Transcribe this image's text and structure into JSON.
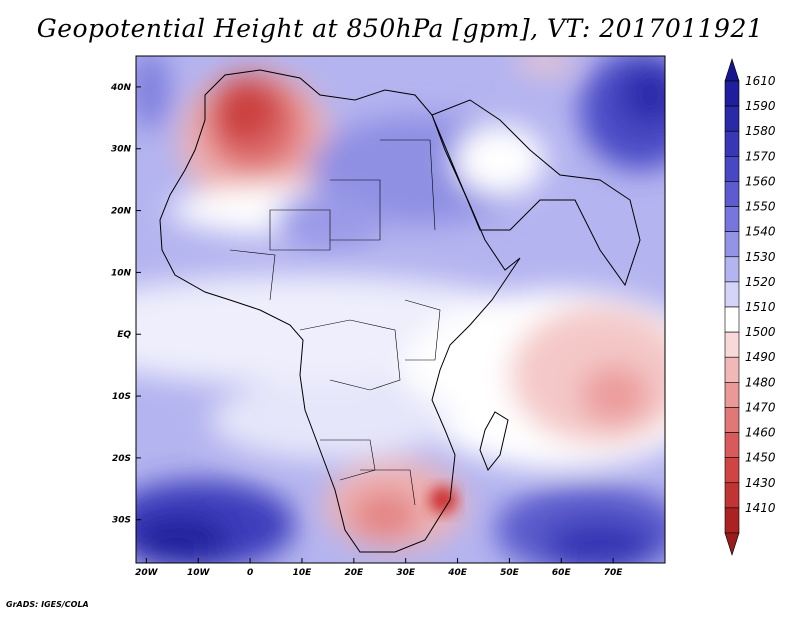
{
  "title": "Geopotential Height at 850hPa [gpm], VT: 2017011921",
  "credit": "GrADS: IGES/COLA",
  "map": {
    "lon_range": [
      -22,
      80
    ],
    "lat_range": [
      -37,
      45
    ],
    "x_ticks": [
      {
        "lon": -20,
        "label": "20W"
      },
      {
        "lon": -10,
        "label": "10W"
      },
      {
        "lon": 0,
        "label": "0"
      },
      {
        "lon": 10,
        "label": "10E"
      },
      {
        "lon": 20,
        "label": "20E"
      },
      {
        "lon": 30,
        "label": "30E"
      },
      {
        "lon": 40,
        "label": "40E"
      },
      {
        "lon": 50,
        "label": "50E"
      },
      {
        "lon": 60,
        "label": "60E"
      },
      {
        "lon": 70,
        "label": "70E"
      }
    ],
    "y_ticks": [
      {
        "lat": 40,
        "label": "40N"
      },
      {
        "lat": 30,
        "label": "30N"
      },
      {
        "lat": 20,
        "label": "20N"
      },
      {
        "lat": 10,
        "label": "10N"
      },
      {
        "lat": 0,
        "label": "EQ"
      },
      {
        "lat": -10,
        "label": "10S"
      },
      {
        "lat": -20,
        "label": "20S"
      },
      {
        "lat": -30,
        "label": "30S"
      }
    ]
  },
  "colorbar": {
    "levels": [
      {
        "label": "1610",
        "color": "#1e1e9e"
      },
      {
        "label": "1590",
        "color": "#2a2aa8"
      },
      {
        "label": "1580",
        "color": "#3838b6"
      },
      {
        "label": "1570",
        "color": "#4848c4"
      },
      {
        "label": "1560",
        "color": "#5c5cd0"
      },
      {
        "label": "1550",
        "color": "#7676dc"
      },
      {
        "label": "1540",
        "color": "#9494e6"
      },
      {
        "label": "1530",
        "color": "#b4b4f0"
      },
      {
        "label": "1520",
        "color": "#d4d4f8"
      },
      {
        "label": "1510",
        "color": "#ffffff"
      },
      {
        "label": "1500",
        "color": "#f8d8d8"
      },
      {
        "label": "1490",
        "color": "#f2b8b8"
      },
      {
        "label": "1480",
        "color": "#ea9898"
      },
      {
        "label": "1470",
        "color": "#e07878"
      },
      {
        "label": "1460",
        "color": "#d85a5a"
      },
      {
        "label": "1450",
        "color": "#d04444"
      },
      {
        "label": "1430",
        "color": "#c03434"
      },
      {
        "label": "1410",
        "color": "#aa2222"
      }
    ],
    "top_arrow_color": "#16168f",
    "bottom_arrow_color": "#991c1c"
  }
}
